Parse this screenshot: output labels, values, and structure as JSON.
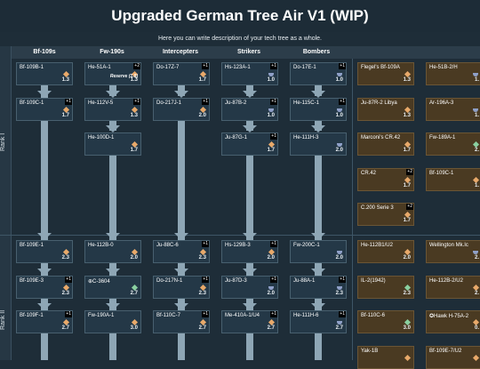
{
  "title": "Upgraded German Tree Air V1 (WIP)",
  "description": "Here you can write description of your tech tree as a whole.",
  "columns": [
    "Bf-109s",
    "Fw-190s",
    "Intercepters",
    "Strikers",
    "Bombers"
  ],
  "ranks": [
    "Rank I",
    "Rank II"
  ],
  "colors": {
    "background": "#1e2d38",
    "card": "#243847",
    "premium_card": "#4a3a22",
    "arrow": "#8ea6b5"
  },
  "vehicles": [
    {
      "name": "Bf-109B-1",
      "br": "1.3",
      "icon": "gold"
    },
    {
      "name": "He-51A-1",
      "br": "1.3",
      "icon": "gold",
      "count": "+2",
      "reserve": "Reserve (1.0)"
    },
    {
      "name": "Do-17Z-7",
      "br": "1.7",
      "icon": "gold",
      "count": "+1"
    },
    {
      "name": "Hs-123A-1",
      "br": "1.0",
      "icon": "blue",
      "count": "+1"
    },
    {
      "name": "Do-17E-1",
      "br": "1.0",
      "icon": "blue",
      "count": "+1"
    },
    {
      "name": "Bf-109C-1",
      "br": "1.7",
      "icon": "gold",
      "count": "+1"
    },
    {
      "name": "He-112V-5",
      "br": "1.3",
      "icon": "gold",
      "count": "+1"
    },
    {
      "name": "Do-217J-1",
      "br": "2.0",
      "icon": "gold",
      "count": "+1"
    },
    {
      "name": "Ju-87B-2",
      "br": "1.0",
      "icon": "blue",
      "count": "+1"
    },
    {
      "name": "He-115C-1",
      "br": "1.0",
      "icon": "blue",
      "count": "+1"
    },
    {
      "name": "He-100D-1",
      "br": "1.7",
      "icon": "gold"
    },
    {
      "name": "Ju-87G-1",
      "br": "1.7",
      "icon": "gold",
      "count": "+1"
    },
    {
      "name": "He-111H-3",
      "br": "2.0",
      "icon": "blue"
    },
    {
      "name": "Bf-109E-1",
      "br": "2.3",
      "icon": "gold"
    },
    {
      "name": "He-112B-0",
      "br": "2.0",
      "icon": "gold"
    },
    {
      "name": "Ju-88C-6",
      "br": "2.3",
      "icon": "gold",
      "count": "+1"
    },
    {
      "name": "Hs-129B-3",
      "br": "2.0",
      "icon": "gold",
      "count": "+1"
    },
    {
      "name": "Fw-200C-1",
      "br": "2.0",
      "icon": "blue"
    },
    {
      "name": "Bf-109E-3",
      "br": "2.3",
      "icon": "gold",
      "count": "+1"
    },
    {
      "name": "⊕C-3604",
      "br": "2.7",
      "icon": "green"
    },
    {
      "name": "Do-217N-1",
      "br": "2.3",
      "icon": "gold",
      "count": "+1"
    },
    {
      "name": "Ju-87D-3",
      "br": "2.0",
      "icon": "blue",
      "count": "+1"
    },
    {
      "name": "Ju-88A-1",
      "br": "2.3",
      "icon": "blue",
      "count": "+1"
    },
    {
      "name": "Bf-109F-1",
      "br": "2.7",
      "icon": "gold",
      "count": "+1"
    },
    {
      "name": "Fw-190A-1",
      "br": "3.0",
      "icon": "gold"
    },
    {
      "name": "Bf-110C-7",
      "br": "2.7",
      "icon": "gold",
      "count": "+1"
    },
    {
      "name": "Me-410A-1/U4",
      "br": "2.7",
      "icon": "gold",
      "count": "+1"
    },
    {
      "name": "He-111H-6",
      "br": "2.7",
      "icon": "blue",
      "count": "+1"
    }
  ],
  "premium": [
    {
      "name": "Flegel's Bf-109A",
      "br": "1.3",
      "icon": "gold"
    },
    {
      "name": "He-51B-2/H",
      "br": "1.",
      "icon": "blue"
    },
    {
      "name": "Ju-87R-2 Libya",
      "br": "1.3",
      "icon": "gold"
    },
    {
      "name": "Ar-196A-3",
      "br": "1.",
      "icon": "blue"
    },
    {
      "name": "Marconi's CR.42",
      "br": "1.7",
      "icon": "gold"
    },
    {
      "name": "Fw-189A-1",
      "br": "2.",
      "icon": "green"
    },
    {
      "name": "CR.42",
      "br": "1.7",
      "icon": "gold",
      "count": "+2"
    },
    {
      "name": "Bf-109C-1",
      "br": "1.",
      "icon": "gold"
    },
    {
      "name": "C.200 Serie 3",
      "br": "1.7",
      "icon": "gold",
      "count": "+2"
    },
    {
      "name": "He-112B1/U2",
      "br": "2.0",
      "icon": "gold"
    },
    {
      "name": "Wellington Mk.Ic",
      "br": "2.",
      "icon": "blue"
    },
    {
      "name": "IL-2(1942)",
      "br": "2.3",
      "icon": "green"
    },
    {
      "name": "He-112B-2/U2",
      "br": "2.",
      "icon": "gold"
    },
    {
      "name": "Bf-110C-6",
      "br": "3.0",
      "icon": "green"
    },
    {
      "name": "✪Hawk H-75A-2",
      "br": "0.",
      "icon": "gold"
    },
    {
      "name": "Yak-1B",
      "br": "",
      "icon": "gold"
    },
    {
      "name": "Bf-109E-7/U2",
      "br": "",
      "icon": "gold"
    }
  ]
}
